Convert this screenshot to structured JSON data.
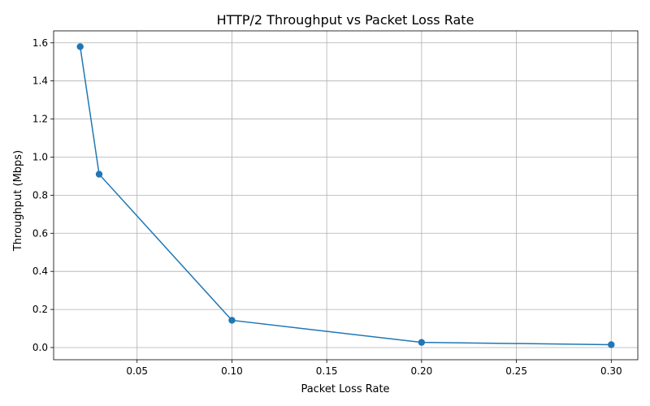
{
  "chart_data": {
    "type": "line",
    "title": "HTTP/2 Throughput vs Packet Loss Rate",
    "xlabel": "Packet Loss Rate",
    "ylabel": "Throughput (Mbps)",
    "x": [
      0.02,
      0.03,
      0.1,
      0.2,
      0.3
    ],
    "series": [
      {
        "values": [
          1.58,
          0.91,
          0.143,
          0.027,
          0.015
        ]
      }
    ],
    "xlim": [
      0.006,
      0.314
    ],
    "ylim": [
      -0.064,
      1.663
    ],
    "xticks": [
      0.05,
      0.1,
      0.15,
      0.2,
      0.25,
      0.3
    ],
    "xtick_labels": [
      "0.05",
      "0.10",
      "0.15",
      "0.20",
      "0.25",
      "0.30"
    ],
    "yticks": [
      0.0,
      0.2,
      0.4,
      0.6,
      0.8,
      1.0,
      1.2,
      1.4,
      1.6
    ],
    "ytick_labels": [
      "0.0",
      "0.2",
      "0.4",
      "0.6",
      "0.8",
      "1.0",
      "1.2",
      "1.4",
      "1.6"
    ],
    "grid": true,
    "line_color": "#1f77b4",
    "marker": "circle"
  }
}
